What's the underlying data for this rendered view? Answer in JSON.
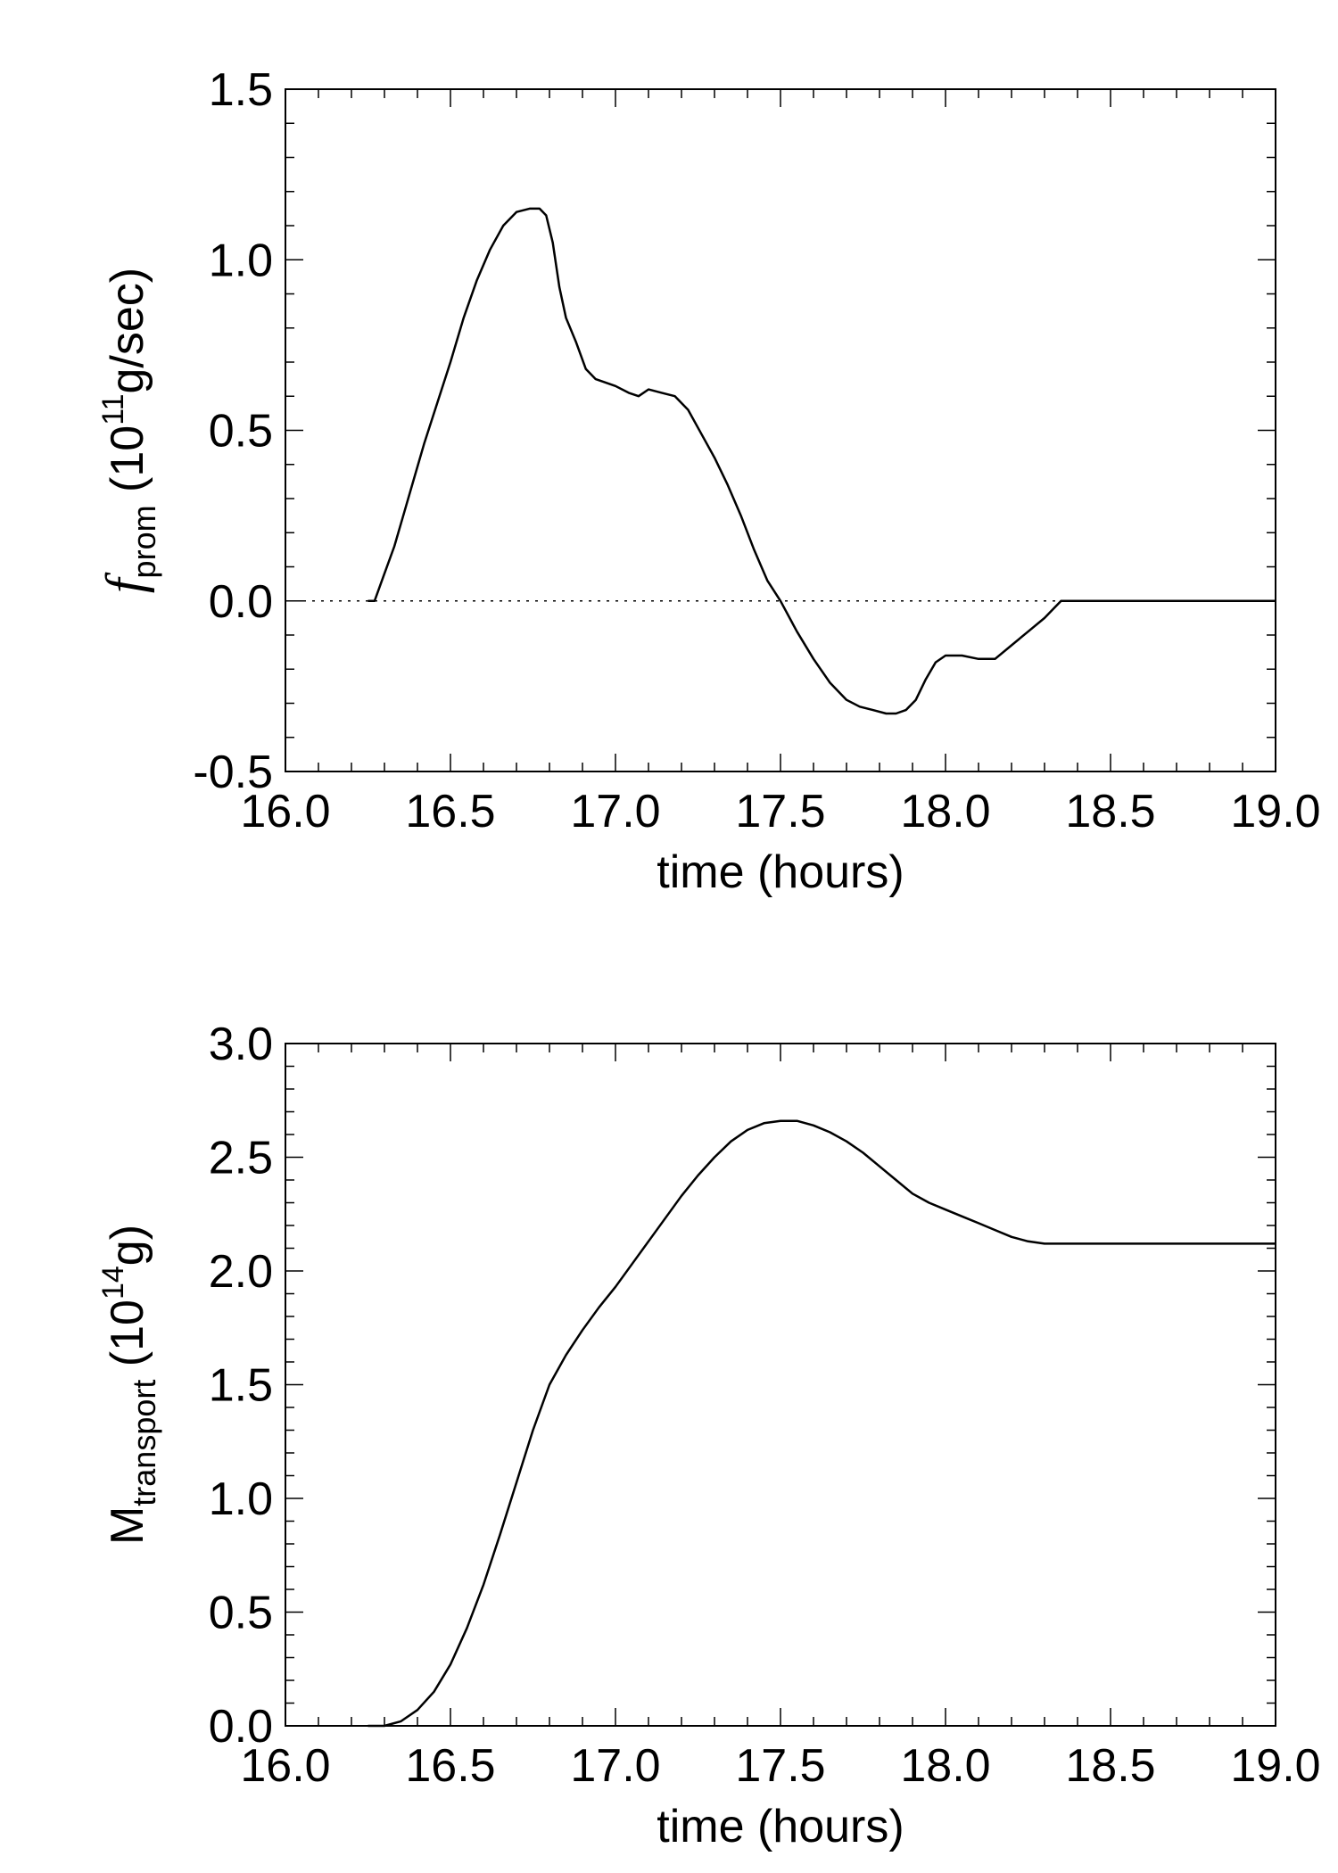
{
  "chart_data": [
    {
      "type": "line",
      "panel": "top",
      "xlabel": "time (hours)",
      "ylabel": {
        "base": "f",
        "sub": "prom",
        "unit_open": " (10",
        "exp": "11",
        "unit_close": "g/sec)"
      },
      "xlim": [
        16.0,
        19.0
      ],
      "ylim": [
        -0.5,
        1.5
      ],
      "xticks": [
        "16.0",
        "16.5",
        "17.0",
        "17.5",
        "18.0",
        "18.5",
        "19.0"
      ],
      "yticks": [
        "-0.5",
        "0.0",
        "0.5",
        "1.0",
        "1.5"
      ],
      "zero_line": "dotted",
      "series": [
        {
          "color": "#000000",
          "x": [
            16.25,
            16.27,
            16.3,
            16.33,
            16.36,
            16.39,
            16.42,
            16.46,
            16.5,
            16.54,
            16.58,
            16.62,
            16.66,
            16.7,
            16.74,
            16.77,
            16.79,
            16.81,
            16.83,
            16.85,
            16.88,
            16.91,
            16.94,
            16.97,
            17.0,
            17.04,
            17.07,
            17.1,
            17.14,
            17.18,
            17.22,
            17.26,
            17.3,
            17.34,
            17.38,
            17.42,
            17.46,
            17.5,
            17.55,
            17.6,
            17.65,
            17.7,
            17.74,
            17.78,
            17.82,
            17.85,
            17.88,
            17.91,
            17.94,
            17.97,
            18.0,
            18.05,
            18.1,
            18.15,
            18.2,
            18.25,
            18.3,
            18.33,
            18.35,
            18.5,
            19.0
          ],
          "y": [
            0.0,
            0.0,
            0.08,
            0.16,
            0.26,
            0.36,
            0.46,
            0.58,
            0.7,
            0.83,
            0.94,
            1.03,
            1.1,
            1.14,
            1.15,
            1.15,
            1.13,
            1.05,
            0.92,
            0.83,
            0.76,
            0.68,
            0.65,
            0.64,
            0.63,
            0.61,
            0.6,
            0.62,
            0.61,
            0.6,
            0.56,
            0.49,
            0.42,
            0.34,
            0.25,
            0.15,
            0.06,
            0.0,
            -0.09,
            -0.17,
            -0.24,
            -0.29,
            -0.31,
            -0.32,
            -0.33,
            -0.33,
            -0.32,
            -0.29,
            -0.23,
            -0.18,
            -0.16,
            -0.16,
            -0.17,
            -0.17,
            -0.13,
            -0.09,
            -0.05,
            -0.02,
            0.0,
            0.0,
            0.0
          ]
        }
      ]
    },
    {
      "type": "line",
      "panel": "bottom",
      "xlabel": "time (hours)",
      "ylabel": {
        "base": "M",
        "sub": "transport",
        "unit_open": " (10",
        "exp": "14",
        "unit_close": "g)"
      },
      "xlim": [
        16.0,
        19.0
      ],
      "ylim": [
        0.0,
        3.0
      ],
      "xticks": [
        "16.0",
        "16.5",
        "17.0",
        "17.5",
        "18.0",
        "18.5",
        "19.0"
      ],
      "yticks": [
        "0.0",
        "0.5",
        "1.0",
        "1.5",
        "2.0",
        "2.5",
        "3.0"
      ],
      "series": [
        {
          "color": "#000000",
          "x": [
            16.25,
            16.3,
            16.35,
            16.4,
            16.45,
            16.5,
            16.55,
            16.6,
            16.65,
            16.7,
            16.75,
            16.8,
            16.85,
            16.9,
            16.95,
            17.0,
            17.05,
            17.1,
            17.15,
            17.2,
            17.25,
            17.3,
            17.35,
            17.4,
            17.45,
            17.5,
            17.55,
            17.6,
            17.65,
            17.7,
            17.75,
            17.8,
            17.85,
            17.9,
            17.95,
            18.0,
            18.05,
            18.1,
            18.15,
            18.2,
            18.25,
            18.3,
            18.35,
            18.5,
            19.0
          ],
          "y": [
            0.0,
            0.0,
            0.02,
            0.07,
            0.15,
            0.27,
            0.43,
            0.62,
            0.84,
            1.07,
            1.3,
            1.5,
            1.63,
            1.74,
            1.84,
            1.93,
            2.03,
            2.13,
            2.23,
            2.33,
            2.42,
            2.5,
            2.57,
            2.62,
            2.65,
            2.66,
            2.66,
            2.64,
            2.61,
            2.57,
            2.52,
            2.46,
            2.4,
            2.34,
            2.3,
            2.27,
            2.24,
            2.21,
            2.18,
            2.15,
            2.13,
            2.12,
            2.12,
            2.12,
            2.12
          ]
        }
      ]
    }
  ]
}
